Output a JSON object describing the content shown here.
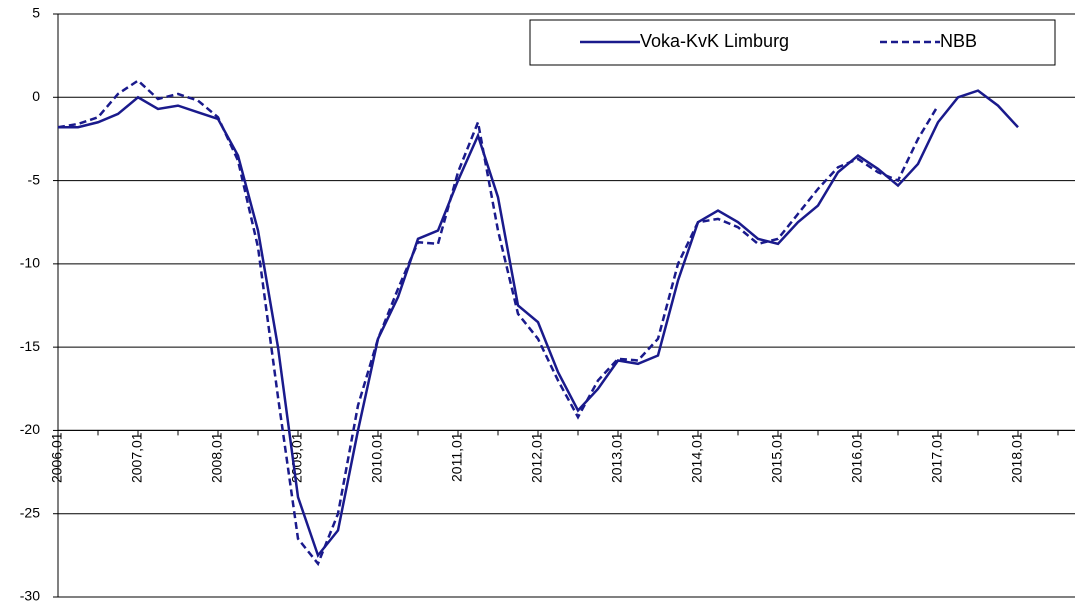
{
  "chart_data": {
    "type": "line",
    "categories": [
      "2006,01",
      null,
      null,
      null,
      "2007,01",
      null,
      null,
      null,
      "2008,01",
      null,
      null,
      null,
      "2009,01",
      null,
      null,
      null,
      "2010,01",
      null,
      null,
      null,
      "2011,01",
      null,
      null,
      null,
      "2012,01",
      null,
      null,
      null,
      "2013,01",
      null,
      null,
      null,
      "2014,01",
      null,
      null,
      null,
      "2015,01",
      null,
      null,
      null,
      "2016,01",
      null,
      null,
      null,
      "2017,01",
      null,
      null,
      null,
      "2018,01"
    ],
    "series": [
      {
        "name": "Voka-KvK Limburg",
        "color": "#1a1a8c",
        "dash": "solid",
        "values": [
          -1.8,
          -1.8,
          -1.5,
          -1.0,
          0,
          -0.7,
          -0.5,
          -0.9,
          -1.3,
          -3.5,
          -8,
          -15,
          -24,
          -27.5,
          -26,
          -20,
          -14.5,
          -12,
          -8.5,
          -8,
          -5,
          -2.3,
          -6,
          -12.5,
          -13.5,
          -16.5,
          -18.8,
          -17.5,
          -15.8,
          -16,
          -15.5,
          -11,
          -7.5,
          -6.8,
          -7.5,
          -8.5,
          -8.8,
          -7.5,
          -6.5,
          -4.5,
          -3.5,
          -4.3,
          -5.3,
          -4,
          -1.5,
          0,
          0.4,
          -0.5,
          -1.8
        ]
      },
      {
        "name": "NBB",
        "color": "#1a1a8c",
        "dash": "dashed",
        "values": [
          -1.8,
          -1.6,
          -1.2,
          0.2,
          1.0,
          -0.1,
          0.2,
          -0.2,
          -1.2,
          -3.8,
          -9,
          -18,
          -26.5,
          -28,
          -25,
          -18.5,
          -14.5,
          -11.5,
          -8.7,
          -8.8,
          -4.5,
          -1.5,
          -8,
          -13,
          -14.5,
          -17,
          -19.2,
          -17,
          -15.7,
          -15.8,
          -14.5,
          -10,
          -7.5,
          -7.3,
          -7.8,
          -8.8,
          -8.5,
          -7,
          -5.5,
          -4.2,
          -3.7,
          -4.5,
          -5,
          -2.5,
          -0.5,
          null,
          null,
          null,
          null
        ]
      }
    ],
    "ylim": [
      -30,
      5
    ],
    "yticks": [
      -30,
      -25,
      -20,
      -15,
      -10,
      -5,
      0,
      5
    ],
    "grid": true,
    "xaxis_cross": -20,
    "legend": "top-right"
  }
}
